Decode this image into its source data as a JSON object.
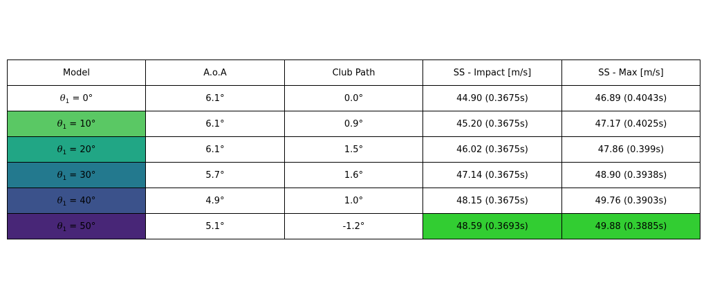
{
  "chart_data": {
    "type": "table",
    "columns": [
      "Model",
      "A.o.A",
      "Club Path",
      "SS - Impact [m/s]",
      "SS - Max [m/s]"
    ],
    "rows": [
      {
        "model_symbol": "θ",
        "model_subscript": "1",
        "model_value": " = 0°",
        "aoa": "6.1°",
        "club_path": "0.0°",
        "ss_impact": "44.90 (0.3675s)",
        "ss_max": "46.89 (0.4043s)",
        "model_color": "#ffffff",
        "impact_color": "#ffffff",
        "max_color": "#ffffff"
      },
      {
        "model_symbol": "θ",
        "model_subscript": "1",
        "model_value": " = 10°",
        "aoa": "6.1°",
        "club_path": "0.9°",
        "ss_impact": "45.20 (0.3675s)",
        "ss_max": "47.17 (0.4025s)",
        "model_color": "#5ac864",
        "impact_color": "#ffffff",
        "max_color": "#ffffff"
      },
      {
        "model_symbol": "θ",
        "model_subscript": "1",
        "model_value": " = 20°",
        "aoa": "6.1°",
        "club_path": "1.5°",
        "ss_impact": "46.02 (0.3675s)",
        "ss_max": "47.86 (0.399s)",
        "model_color": "#21a685",
        "impact_color": "#ffffff",
        "max_color": "#ffffff"
      },
      {
        "model_symbol": "θ",
        "model_subscript": "1",
        "model_value": " = 30°",
        "aoa": "5.7°",
        "club_path": "1.6°",
        "ss_impact": "47.14 (0.3675s)",
        "ss_max": "48.90 (0.3938s)",
        "model_color": "#23798e",
        "impact_color": "#ffffff",
        "max_color": "#ffffff"
      },
      {
        "model_symbol": "θ",
        "model_subscript": "1",
        "model_value": " = 40°",
        "aoa": "4.9°",
        "club_path": "1.0°",
        "ss_impact": "48.15 (0.3675s)",
        "ss_max": "49.76 (0.3903s)",
        "model_color": "#3b528b",
        "impact_color": "#ffffff",
        "max_color": "#ffffff"
      },
      {
        "model_symbol": "θ",
        "model_subscript": "1",
        "model_value": " = 50°",
        "aoa": "5.1°",
        "club_path": "-1.2°",
        "ss_impact": "48.59 (0.3693s)",
        "ss_max": "49.88 (0.3885s)",
        "model_color": "#482677",
        "impact_color": "#32cd32",
        "max_color": "#32cd32"
      }
    ]
  }
}
